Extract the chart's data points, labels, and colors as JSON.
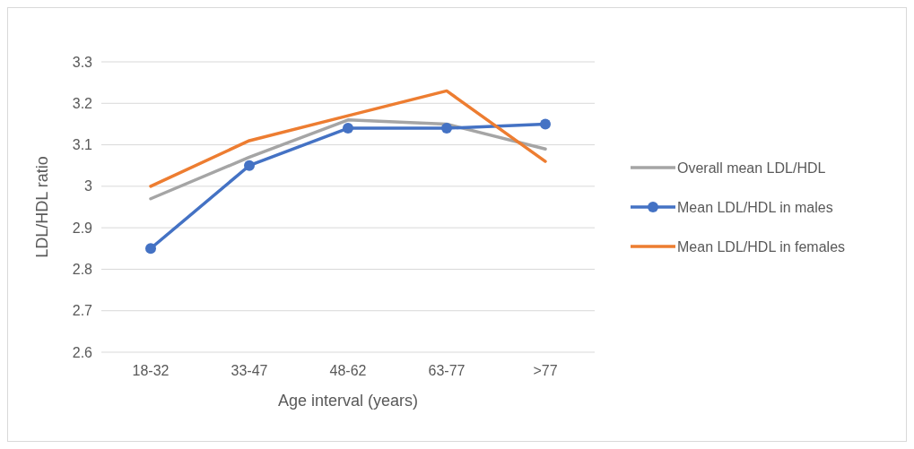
{
  "chart_data": {
    "type": "line",
    "xlabel": "Age interval (years)",
    "ylabel": "LDL/HDL ratio",
    "categories": [
      "18-32",
      "33-47",
      "48-62",
      "63-77",
      ">77"
    ],
    "ylim": [
      2.6,
      3.3
    ],
    "yticks": [
      2.6,
      2.7,
      2.8,
      2.9,
      {
        "value": 3,
        "label": "3"
      },
      3.1,
      3.2,
      3.3
    ],
    "grid": "y",
    "legend": "right",
    "series": [
      {
        "name": "Overall mean LDL/HDL",
        "color": "#a5a5a5",
        "marker": "none",
        "values": [
          2.97,
          3.07,
          3.16,
          3.15,
          3.09
        ]
      },
      {
        "name": "Mean LDL/HDL in males",
        "color": "#4472c4",
        "marker": "circle",
        "values": [
          2.85,
          3.05,
          3.14,
          3.14,
          3.15
        ]
      },
      {
        "name": "Mean LDL/HDL in females",
        "color": "#ed7d31",
        "marker": "none",
        "values": [
          3.0,
          3.11,
          3.17,
          3.23,
          3.06
        ]
      }
    ]
  }
}
